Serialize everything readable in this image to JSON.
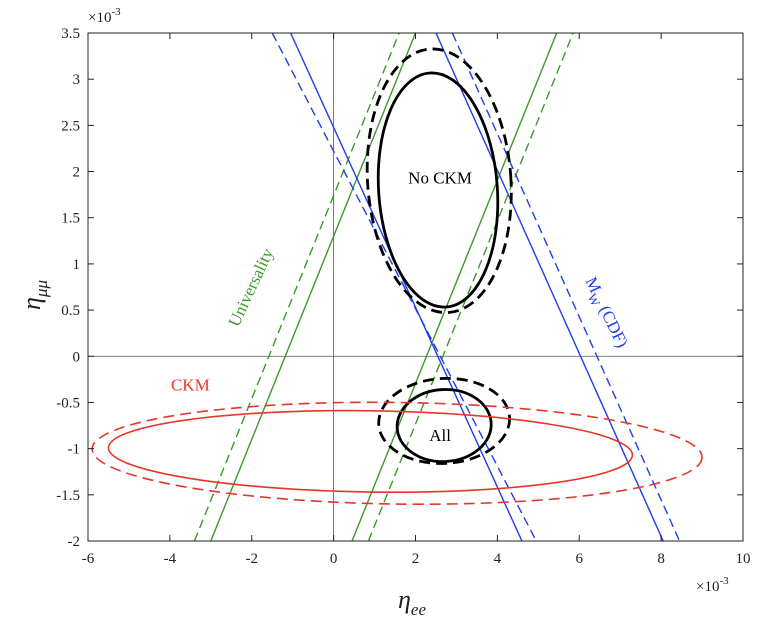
{
  "chart_data": {
    "type": "line",
    "xlabel": {
      "symbol": "η",
      "sub": "ee"
    },
    "ylabel": {
      "symbol": "η",
      "sub": "μμ"
    },
    "xlim": [
      -6,
      10
    ],
    "ylim": [
      -2,
      3.5
    ],
    "xticks": [
      -6,
      -4,
      -2,
      0,
      2,
      4,
      6,
      8,
      10
    ],
    "yticks": [
      -2,
      -1.5,
      -1,
      -0.5,
      0,
      0.5,
      1,
      1.5,
      2,
      2.5,
      3,
      3.5
    ],
    "x_exponent": "×10",
    "x_exponent_power": "-3",
    "y_exponent": "×10",
    "y_exponent_power": "-3",
    "colors": {
      "blue": "#1f3fe6",
      "green": "#3a9a2a",
      "red": "#e8352a",
      "black": "#000000"
    },
    "series": [
      {
        "name": "Universality solid left",
        "color": "green",
        "dash": false,
        "points": [
          [
            -3.0,
            -2.0
          ],
          [
            2.0,
            3.5
          ]
        ]
      },
      {
        "name": "Universality solid right",
        "color": "green",
        "dash": false,
        "points": [
          [
            0.45,
            -2.0
          ],
          [
            5.45,
            3.5
          ]
        ]
      },
      {
        "name": "Universality dashed left",
        "color": "green",
        "dash": true,
        "points": [
          [
            -3.4,
            -2.0
          ],
          [
            1.6,
            3.5
          ]
        ]
      },
      {
        "name": "Universality dashed right",
        "color": "green",
        "dash": true,
        "points": [
          [
            0.85,
            -2.0
          ],
          [
            5.85,
            3.5
          ]
        ]
      },
      {
        "name": "M_W solid left",
        "color": "blue",
        "dash": false,
        "points": [
          [
            -1.05,
            3.5
          ],
          [
            4.6,
            -2.0
          ]
        ]
      },
      {
        "name": "M_W solid right",
        "color": "blue",
        "dash": false,
        "points": [
          [
            2.5,
            3.5
          ],
          [
            8.05,
            -2.0
          ]
        ]
      },
      {
        "name": "M_W dashed left",
        "color": "blue",
        "dash": true,
        "points": [
          [
            -1.5,
            3.5
          ],
          [
            4.95,
            -2.0
          ]
        ]
      },
      {
        "name": "M_W dashed right",
        "color": "blue",
        "dash": true,
        "points": [
          [
            2.9,
            3.5
          ],
          [
            8.45,
            -2.0
          ]
        ]
      }
    ],
    "ellipses": [
      {
        "name": "No CKM solid",
        "color": "black",
        "dash": false,
        "width": 2.8,
        "cx": 2.55,
        "cy": 1.8,
        "rx": 1.45,
        "ry": 1.27,
        "rot": -4
      },
      {
        "name": "No CKM dashed",
        "color": "black",
        "dash": true,
        "width": 2.8,
        "cx": 2.58,
        "cy": 1.9,
        "rx": 1.75,
        "ry": 1.43,
        "rot": -4
      },
      {
        "name": "All solid",
        "color": "black",
        "dash": false,
        "width": 2.8,
        "cx": 2.7,
        "cy": -0.75,
        "rx": 1.15,
        "ry": 0.39,
        "rot": -3
      },
      {
        "name": "All dashed",
        "color": "black",
        "dash": true,
        "width": 2.8,
        "cx": 2.7,
        "cy": -0.7,
        "rx": 1.6,
        "ry": 0.46,
        "rot": -3
      },
      {
        "name": "CKM solid",
        "color": "red",
        "dash": false,
        "width": 1.6,
        "cx": 0.9,
        "cy": -1.03,
        "rx": 6.4,
        "ry": 0.44,
        "rot": 0.8
      },
      {
        "name": "CKM dashed",
        "color": "red",
        "dash": true,
        "width": 1.6,
        "cx": 1.55,
        "cy": -1.05,
        "rx": 7.45,
        "ry": 0.55,
        "rot": 0.8
      }
    ],
    "annotations": [
      {
        "text": "No CKM",
        "x": 2.6,
        "y": 1.87,
        "color": "black",
        "rot": 0
      },
      {
        "text": "All",
        "x": 2.6,
        "y": -0.92,
        "color": "black",
        "rot": 0
      },
      {
        "text": "CKM",
        "x": -3.5,
        "y": -0.37,
        "color": "red",
        "rot": 0
      },
      {
        "text": "Universality",
        "x": -1.9,
        "y": 0.72,
        "color": "green",
        "rot": -65
      },
      {
        "text": "M",
        "sub": "W",
        "tail": " (CDF)",
        "x": 6.55,
        "y": 0.45,
        "color": "blue",
        "rot": 64
      }
    ]
  }
}
